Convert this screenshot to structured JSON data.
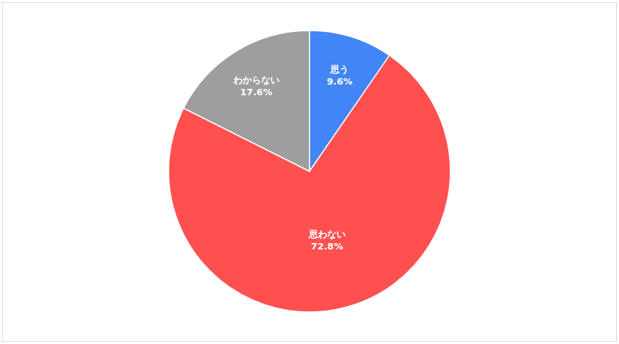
{
  "chart_data": {
    "type": "pie",
    "categories": [
      "思う",
      "思わない",
      "わからない"
    ],
    "values": [
      9.6,
      72.8,
      17.6
    ],
    "value_labels": [
      "9.6%",
      "72.8%",
      "17.6%"
    ],
    "colors": [
      "#4285f4",
      "#ff5050",
      "#9e9e9e"
    ],
    "data_labels": true
  }
}
